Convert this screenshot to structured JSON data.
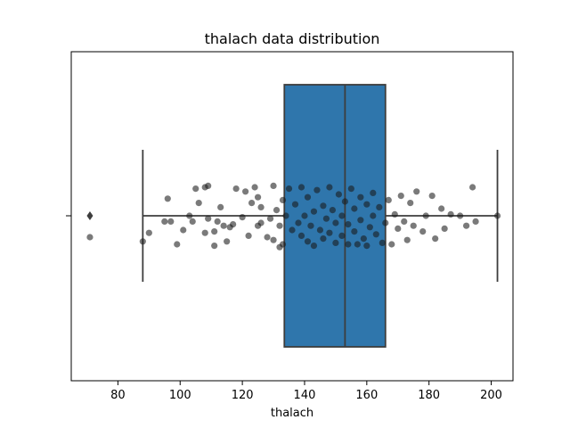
{
  "chart_data": {
    "type": "box",
    "title": "thalach data distribution",
    "xlabel": "thalach",
    "ylabel": "",
    "xlim": [
      65,
      207
    ],
    "xticks": [
      80,
      100,
      120,
      140,
      160,
      180,
      200
    ],
    "grid": false,
    "colors": {
      "box_fill": "#2f76ac",
      "box_edge": "#3d3d3d",
      "points": "#1a1a1a"
    },
    "box": {
      "min": 88,
      "q1": 133.5,
      "median": 153,
      "q3": 166,
      "max": 202,
      "outliers": [
        71
      ]
    },
    "points": [
      {
        "x": 71,
        "y": 0.15
      },
      {
        "x": 88,
        "y": 0.18
      },
      {
        "x": 90,
        "y": 0.12
      },
      {
        "x": 95,
        "y": 0.04
      },
      {
        "x": 96,
        "y": -0.12
      },
      {
        "x": 97,
        "y": 0.04
      },
      {
        "x": 99,
        "y": 0.2
      },
      {
        "x": 101,
        "y": 0.1
      },
      {
        "x": 103,
        "y": 0.0
      },
      {
        "x": 104,
        "y": 0.04
      },
      {
        "x": 105,
        "y": -0.19
      },
      {
        "x": 106,
        "y": -0.09
      },
      {
        "x": 108,
        "y": 0.12
      },
      {
        "x": 108,
        "y": -0.2
      },
      {
        "x": 109,
        "y": 0.02
      },
      {
        "x": 109,
        "y": -0.21
      },
      {
        "x": 111,
        "y": 0.11
      },
      {
        "x": 111,
        "y": 0.21
      },
      {
        "x": 112,
        "y": 0.04
      },
      {
        "x": 113,
        "y": -0.06
      },
      {
        "x": 114,
        "y": 0.07
      },
      {
        "x": 115,
        "y": 0.18
      },
      {
        "x": 116,
        "y": 0.08
      },
      {
        "x": 117,
        "y": 0.06
      },
      {
        "x": 118,
        "y": -0.19
      },
      {
        "x": 120,
        "y": 0.01
      },
      {
        "x": 121,
        "y": -0.17
      },
      {
        "x": 122,
        "y": 0.14
      },
      {
        "x": 123,
        "y": -0.09
      },
      {
        "x": 124,
        "y": -0.2
      },
      {
        "x": 125,
        "y": 0.07
      },
      {
        "x": 125,
        "y": -0.13
      },
      {
        "x": 126,
        "y": 0.05
      },
      {
        "x": 126,
        "y": -0.06
      },
      {
        "x": 128,
        "y": 0.15
      },
      {
        "x": 129,
        "y": 0.02
      },
      {
        "x": 130,
        "y": -0.21
      },
      {
        "x": 130,
        "y": 0.17
      },
      {
        "x": 131,
        "y": -0.04
      },
      {
        "x": 132,
        "y": 0.07
      },
      {
        "x": 132,
        "y": 0.22
      },
      {
        "x": 133,
        "y": -0.11
      },
      {
        "x": 133,
        "y": 0.2
      },
      {
        "x": 134,
        "y": 0.0
      },
      {
        "x": 135,
        "y": -0.19
      },
      {
        "x": 136,
        "y": 0.1
      },
      {
        "x": 137,
        "y": -0.08
      },
      {
        "x": 138,
        "y": 0.05
      },
      {
        "x": 139,
        "y": -0.2
      },
      {
        "x": 139,
        "y": 0.14
      },
      {
        "x": 140,
        "y": 0.0
      },
      {
        "x": 141,
        "y": -0.13
      },
      {
        "x": 141,
        "y": 0.18
      },
      {
        "x": 142,
        "y": 0.07
      },
      {
        "x": 143,
        "y": -0.03
      },
      {
        "x": 143,
        "y": 0.21
      },
      {
        "x": 144,
        "y": -0.18
      },
      {
        "x": 145,
        "y": 0.1
      },
      {
        "x": 146,
        "y": -0.07
      },
      {
        "x": 146,
        "y": 0.16
      },
      {
        "x": 147,
        "y": 0.02
      },
      {
        "x": 148,
        "y": -0.2
      },
      {
        "x": 148,
        "y": 0.12
      },
      {
        "x": 149,
        "y": -0.04
      },
      {
        "x": 150,
        "y": 0.19
      },
      {
        "x": 150,
        "y": 0.05
      },
      {
        "x": 151,
        "y": -0.15
      },
      {
        "x": 152,
        "y": 0.0
      },
      {
        "x": 152,
        "y": 0.14
      },
      {
        "x": 153,
        "y": -0.1
      },
      {
        "x": 154,
        "y": 0.2
      },
      {
        "x": 154,
        "y": 0.06
      },
      {
        "x": 155,
        "y": -0.19
      },
      {
        "x": 156,
        "y": -0.05
      },
      {
        "x": 156,
        "y": 0.11
      },
      {
        "x": 157,
        "y": 0.2
      },
      {
        "x": 158,
        "y": -0.13
      },
      {
        "x": 158,
        "y": 0.03
      },
      {
        "x": 159,
        "y": 0.16
      },
      {
        "x": 160,
        "y": -0.08
      },
      {
        "x": 160,
        "y": 0.21
      },
      {
        "x": 161,
        "y": 0.08
      },
      {
        "x": 162,
        "y": -0.16
      },
      {
        "x": 162,
        "y": 0.0
      },
      {
        "x": 163,
        "y": 0.13
      },
      {
        "x": 164,
        "y": -0.06
      },
      {
        "x": 165,
        "y": 0.19
      },
      {
        "x": 166,
        "y": 0.05
      },
      {
        "x": 167,
        "y": -0.11
      },
      {
        "x": 168,
        "y": 0.2
      },
      {
        "x": 169,
        "y": -0.01
      },
      {
        "x": 170,
        "y": 0.09
      },
      {
        "x": 171,
        "y": -0.14
      },
      {
        "x": 172,
        "y": 0.04
      },
      {
        "x": 173,
        "y": 0.17
      },
      {
        "x": 174,
        "y": -0.09
      },
      {
        "x": 175,
        "y": 0.07
      },
      {
        "x": 176,
        "y": -0.17
      },
      {
        "x": 178,
        "y": 0.11
      },
      {
        "x": 179,
        "y": 0.0
      },
      {
        "x": 181,
        "y": -0.14
      },
      {
        "x": 182,
        "y": 0.16
      },
      {
        "x": 184,
        "y": -0.05
      },
      {
        "x": 185,
        "y": 0.09
      },
      {
        "x": 187,
        "y": -0.01
      },
      {
        "x": 190,
        "y": 0.0
      },
      {
        "x": 192,
        "y": 0.07
      },
      {
        "x": 194,
        "y": -0.2
      },
      {
        "x": 195,
        "y": 0.04
      },
      {
        "x": 202,
        "y": 0.0
      }
    ]
  }
}
